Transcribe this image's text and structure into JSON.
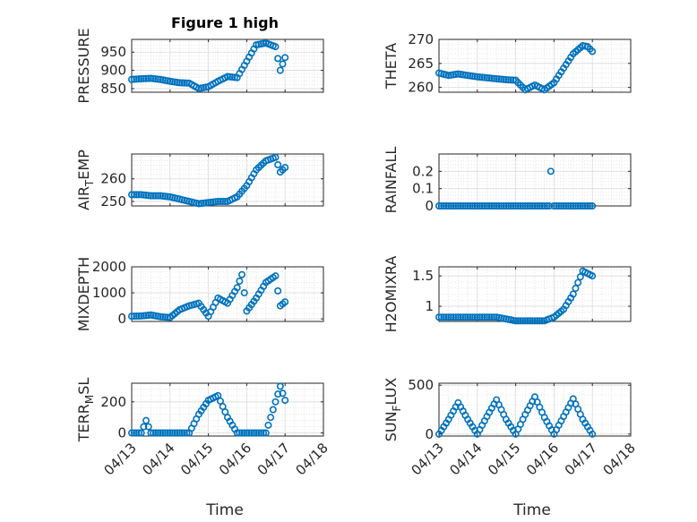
{
  "figure_title": "Figure 1 high",
  "chart_data": [
    {
      "type": "scatter",
      "ylabel": "PRESSURE",
      "ylim": [
        840,
        985
      ],
      "yticks": [
        "850",
        "900",
        "950"
      ],
      "ytick_values": [
        850,
        900,
        950
      ],
      "grid": true,
      "marker_color": "#0072BD",
      "x": [
        "04/13 00:00",
        "04/13 06:00",
        "04/13 12:00",
        "04/13 18:00",
        "04/14 00:00",
        "04/14 06:00",
        "04/14 12:00",
        "04/14 18:00",
        "04/15 00:00",
        "04/15 06:00",
        "04/15 12:00",
        "04/15 18:00",
        "04/16 00:00",
        "04/16 06:00",
        "04/16 12:00",
        "04/16 18:00",
        "04/16 21:00",
        "04/17 00:00"
      ],
      "y": [
        875,
        877,
        878,
        875,
        870,
        866,
        865,
        850,
        855,
        870,
        883,
        880,
        925,
        970,
        975,
        965,
        900,
        935
      ]
    },
    {
      "type": "scatter",
      "ylabel": "THETA",
      "ylim": [
        259,
        270
      ],
      "yticks": [
        "260",
        "265",
        "270"
      ],
      "ytick_values": [
        260,
        265,
        270
      ],
      "grid": true,
      "marker_color": "#0072BD",
      "x": [
        "04/13 00:00",
        "04/13 06:00",
        "04/13 12:00",
        "04/13 18:00",
        "04/14 00:00",
        "04/14 06:00",
        "04/14 12:00",
        "04/14 18:00",
        "04/15 00:00",
        "04/15 06:00",
        "04/15 12:00",
        "04/15 18:00",
        "04/16 00:00",
        "04/16 06:00",
        "04/16 12:00",
        "04/16 18:00",
        "04/16 21:00",
        "04/17 00:00"
      ],
      "y": [
        263,
        262.5,
        262.8,
        262.5,
        262.2,
        262,
        261.8,
        261.6,
        261.5,
        259.5,
        260.5,
        259.5,
        261,
        264,
        267,
        268.7,
        268.5,
        267.5
      ]
    },
    {
      "type": "scatter",
      "ylabel": "AIR",
      "ylabel_sub": "T",
      "ylabel_rest": "EMP",
      "ylim": [
        248,
        271
      ],
      "yticks": [
        "250",
        "260"
      ],
      "ytick_values": [
        250,
        260
      ],
      "grid": true,
      "marker_color": "#0072BD",
      "x": [
        "04/13 00:00",
        "04/13 06:00",
        "04/13 12:00",
        "04/13 18:00",
        "04/14 00:00",
        "04/14 06:00",
        "04/14 12:00",
        "04/14 18:00",
        "04/15 00:00",
        "04/15 06:00",
        "04/15 12:00",
        "04/15 18:00",
        "04/16 00:00",
        "04/16 06:00",
        "04/16 12:00",
        "04/16 18:00",
        "04/16 21:00",
        "04/17 00:00"
      ],
      "y": [
        253,
        253,
        252.5,
        252.5,
        252,
        251,
        250,
        249,
        249.5,
        250,
        250,
        252,
        257,
        264,
        268,
        269.5,
        263,
        265
      ]
    },
    {
      "type": "scatter",
      "ylabel": "RAINFALL",
      "ylim": [
        0,
        0.3
      ],
      "yticks": [
        "0",
        "0.1",
        "0.2"
      ],
      "ytick_values": [
        0,
        0.1,
        0.2
      ],
      "grid": true,
      "marker_color": "#0072BD",
      "x": [
        "04/13 00:00",
        "04/13 12:00",
        "04/14 00:00",
        "04/14 12:00",
        "04/15 00:00",
        "04/15 12:00",
        "04/15 21:00",
        "04/15 22:00",
        "04/16 00:00",
        "04/16 12:00",
        "04/17 00:00"
      ],
      "y": [
        0,
        0,
        0,
        0,
        0,
        0,
        0,
        0.2,
        0,
        0,
        0
      ]
    },
    {
      "type": "scatter",
      "ylabel": "MIXDEPTH",
      "ylim": [
        -100,
        2000
      ],
      "yticks": [
        "0",
        "1000",
        "2000"
      ],
      "ytick_values": [
        0,
        1000,
        2000
      ],
      "grid": true,
      "marker_color": "#0072BD",
      "x": [
        "04/13 00:00",
        "04/13 06:00",
        "04/13 12:00",
        "04/13 18:00",
        "04/14 00:00",
        "04/14 06:00",
        "04/14 12:00",
        "04/14 18:00",
        "04/15 00:00",
        "04/15 06:00",
        "04/15 12:00",
        "04/15 18:00",
        "04/15 21:00",
        "04/16 00:00",
        "04/16 06:00",
        "04/16 12:00",
        "04/16 18:00",
        "04/16 21:00",
        "04/17 00:00"
      ],
      "y": [
        100,
        110,
        150,
        80,
        50,
        350,
        500,
        600,
        100,
        800,
        600,
        1200,
        1700,
        300,
        800,
        1400,
        1650,
        500,
        650
      ]
    },
    {
      "type": "scatter",
      "ylabel": "H2OMIXRA",
      "ylim": [
        0.75,
        1.65
      ],
      "yticks": [
        "1",
        "1.5"
      ],
      "ytick_values": [
        1,
        1.5
      ],
      "grid": true,
      "marker_color": "#0072BD",
      "x": [
        "04/13 00:00",
        "04/13 12:00",
        "04/14 00:00",
        "04/14 12:00",
        "04/15 00:00",
        "04/15 12:00",
        "04/15 18:00",
        "04/16 00:00",
        "04/16 06:00",
        "04/16 12:00",
        "04/16 18:00",
        "04/17 00:00"
      ],
      "y": [
        0.82,
        0.82,
        0.82,
        0.82,
        0.76,
        0.76,
        0.76,
        0.82,
        0.95,
        1.2,
        1.58,
        1.5
      ]
    },
    {
      "type": "scatter",
      "ylabel": "TERR",
      "ylabel_sub": "M",
      "ylabel_rest": "SL",
      "ylim": [
        -20,
        320
      ],
      "yticks": [
        "0",
        "200"
      ],
      "ytick_values": [
        0,
        200
      ],
      "grid": true,
      "marker_color": "#0072BD",
      "x": [
        "04/13 00:00",
        "04/13 06:00",
        "04/13 09:00",
        "04/13 12:00",
        "04/14 00:00",
        "04/14 12:00",
        "04/14 18:00",
        "04/15 00:00",
        "04/15 06:00",
        "04/15 12:00",
        "04/15 18:00",
        "04/16 00:00",
        "04/16 12:00",
        "04/16 18:00",
        "04/16 21:00",
        "04/17 00:00"
      ],
      "y": [
        0,
        0,
        80,
        0,
        0,
        0,
        120,
        210,
        240,
        100,
        0,
        0,
        0,
        200,
        300,
        210
      ]
    },
    {
      "type": "scatter",
      "ylabel": "SUN",
      "ylabel_sub": "F",
      "ylabel_rest": "LUX",
      "ylim": [
        -20,
        520
      ],
      "yticks": [
        "0",
        "500"
      ],
      "ytick_values": [
        0,
        500
      ],
      "grid": true,
      "marker_color": "#0072BD",
      "x": [
        "04/13 00:00",
        "04/13 06:00",
        "04/13 12:00",
        "04/13 18:00",
        "04/14 00:00",
        "04/14 06:00",
        "04/14 12:00",
        "04/14 18:00",
        "04/15 00:00",
        "04/15 06:00",
        "04/15 12:00",
        "04/15 18:00",
        "04/16 00:00",
        "04/16 06:00",
        "04/16 12:00",
        "04/16 18:00",
        "04/17 00:00"
      ],
      "y": [
        0,
        150,
        320,
        150,
        0,
        180,
        350,
        150,
        0,
        200,
        380,
        170,
        0,
        180,
        360,
        150,
        0
      ]
    }
  ],
  "xticks": [
    "04/13",
    "04/14",
    "04/15",
    "04/16",
    "04/17",
    "04/18"
  ],
  "xlabel": "Time"
}
